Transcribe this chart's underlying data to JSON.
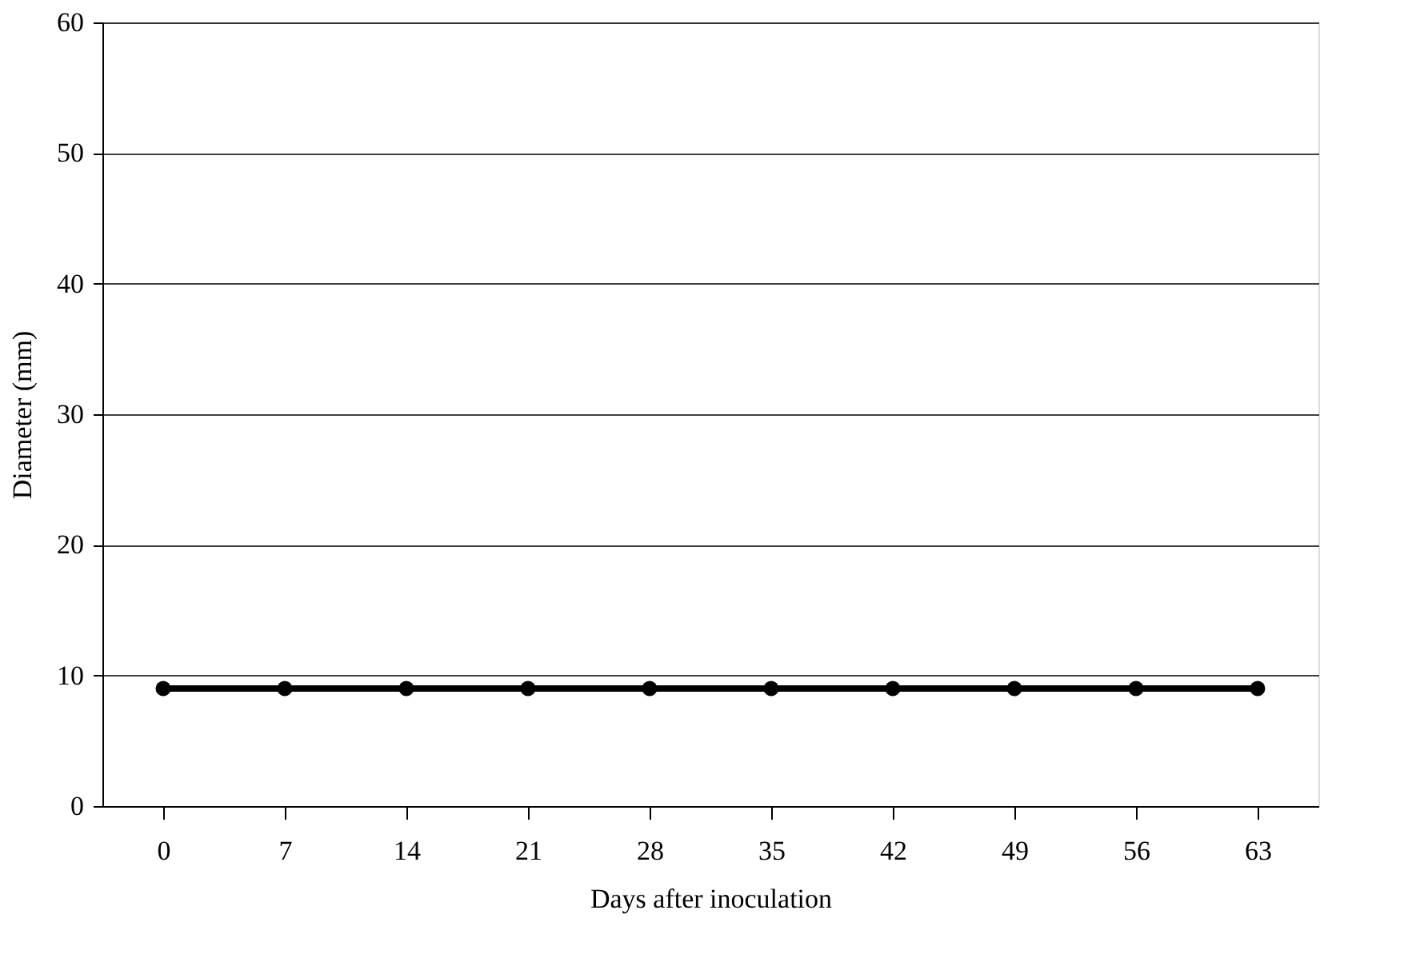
{
  "chart_data": {
    "type": "line",
    "xlabel": "Days after inoculation",
    "ylabel": "Diameter (mm)",
    "categories": [
      "0",
      "7",
      "14",
      "21",
      "28",
      "35",
      "42",
      "49",
      "56",
      "63"
    ],
    "series": [
      {
        "color": "#000000",
        "values": [
          9,
          9,
          9,
          9,
          9,
          9,
          9,
          9,
          9,
          9
        ]
      }
    ],
    "ylim": [
      0,
      60
    ],
    "yticks": [
      0,
      10,
      20,
      30,
      40,
      50,
      60
    ],
    "grid": "y",
    "marker": "circle",
    "line_style": "solid"
  }
}
